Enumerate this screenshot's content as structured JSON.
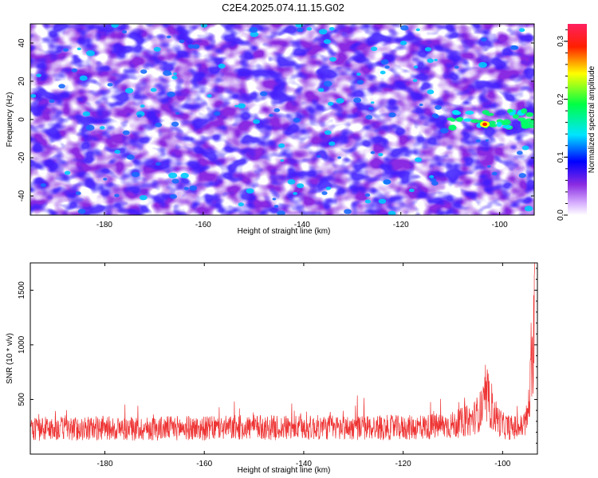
{
  "figure": {
    "title": "C2E4.2025.074.11.15.G02"
  },
  "chart_data": [
    {
      "type": "heatmap",
      "xlabel": "Height of straight line (km)",
      "ylabel": "Frequency (Hz)",
      "xlim": [
        -195,
        -93
      ],
      "ylim": [
        -50,
        50
      ],
      "xticks": [
        -180,
        -160,
        -140,
        -120,
        -100
      ],
      "xtick_labels": [
        "-180",
        "-160",
        "-140",
        "-120",
        "-100"
      ],
      "yticks": [
        -40,
        -20,
        0,
        20,
        40
      ],
      "ytick_labels": [
        "-40",
        "-20",
        "0",
        "20",
        "40"
      ],
      "colorbar": {
        "label": "Normalized spectral amplitude",
        "range": [
          0,
          0.33
        ],
        "ticks": [
          0,
          0.1,
          0.2,
          0.3
        ],
        "tick_labels": [
          "0.0",
          "0.1",
          "0.2",
          "0.3"
        ],
        "colors": [
          "#ffffff",
          "#a020f0",
          "#0000ff",
          "#00ffff",
          "#00ff00",
          "#ffff00",
          "#ff0000",
          "#ff1493"
        ]
      },
      "features": {
        "background_amplitude": 0.05,
        "bright_band": {
          "x_range": [
            -110,
            -93
          ],
          "frequency": 0,
          "peak_amplitude": 0.3,
          "peak_x": -103
        }
      }
    },
    {
      "type": "line",
      "xlabel": "Height of straight line (km)",
      "ylabel": "SNR (10 * v/v)",
      "xlim": [
        -195,
        -93
      ],
      "ylim": [
        0,
        1750
      ],
      "xticks": [
        -180,
        -160,
        -140,
        -120,
        -100
      ],
      "xtick_labels": [
        "-180",
        "-160",
        "-140",
        "-120",
        "-100"
      ],
      "yticks": [
        500,
        1000,
        1500
      ],
      "ytick_labels": [
        "500",
        "1000",
        "1500"
      ],
      "series": [
        {
          "color": "#ee3333",
          "x": [
            -195,
            -190,
            -185,
            -180,
            -175,
            -170,
            -165,
            -160,
            -155,
            -150,
            -145,
            -140,
            -135,
            -130,
            -125,
            -120,
            -115,
            -110,
            -106,
            -104,
            -103,
            -102,
            -100,
            -98,
            -96,
            -95,
            -94,
            -93.5
          ],
          "y": [
            230,
            235,
            230,
            240,
            230,
            235,
            240,
            235,
            240,
            245,
            240,
            240,
            245,
            240,
            245,
            240,
            250,
            265,
            320,
            420,
            500,
            380,
            260,
            240,
            250,
            330,
            800,
            1700
          ]
        }
      ]
    }
  ]
}
